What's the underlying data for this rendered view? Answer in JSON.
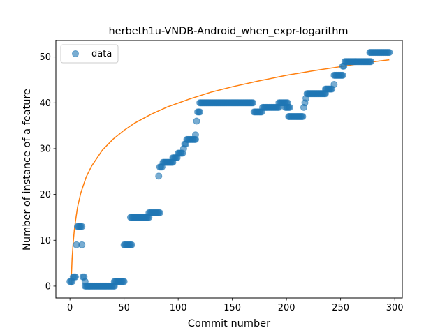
{
  "chart_data": {
    "type": "scatter",
    "title": "herbeth1u-VNDB-Android_when_expr-logarithm",
    "xlabel": "Commit number",
    "ylabel": "Number of instance of a feature",
    "xlim": [
      -13,
      307
    ],
    "ylim": [
      -2.6,
      53.6
    ],
    "xticks": [
      0,
      50,
      100,
      150,
      200,
      250,
      300
    ],
    "yticks": [
      0,
      10,
      20,
      30,
      40,
      50
    ],
    "grid": false,
    "legend": {
      "placement": "top-left",
      "entries": [
        {
          "label": "data"
        }
      ]
    },
    "colors": {
      "scatter": "#1f77b4",
      "fit": "#ff7f0e"
    },
    "series": [
      {
        "name": "data",
        "kind": "scatter",
        "segments": [
          {
            "x_start": 0,
            "x_end": 0,
            "y": 1
          },
          {
            "x_start": 1,
            "x_end": 2,
            "y": 1
          },
          {
            "x_start": 3,
            "x_end": 5,
            "y": 2
          },
          {
            "x_start": 6,
            "x_end": 6,
            "y": 9
          },
          {
            "x_start": 7,
            "x_end": 11,
            "y": 13
          },
          {
            "x_start": 11,
            "x_end": 11,
            "y": 9
          },
          {
            "x_start": 12,
            "x_end": 13,
            "y": 2
          },
          {
            "x_start": 14,
            "x_end": 14,
            "y": 1
          },
          {
            "x_start": 14,
            "x_end": 41,
            "y": 0
          },
          {
            "x_start": 41,
            "x_end": 50,
            "y": 1
          },
          {
            "x_start": 50,
            "x_end": 57,
            "y": 9
          },
          {
            "x_start": 56,
            "x_end": 73,
            "y": 15
          },
          {
            "x_start": 73,
            "x_end": 83,
            "y": 16
          },
          {
            "x_start": 82,
            "x_end": 82,
            "y": 24
          },
          {
            "x_start": 83,
            "x_end": 85,
            "y": 26
          },
          {
            "x_start": 86,
            "x_end": 95,
            "y": 27
          },
          {
            "x_start": 95,
            "x_end": 99,
            "y": 28
          },
          {
            "x_start": 100,
            "x_end": 104,
            "y": 29
          },
          {
            "x_start": 105,
            "x_end": 105,
            "y": 30
          },
          {
            "x_start": 106,
            "x_end": 107,
            "y": 31
          },
          {
            "x_start": 108,
            "x_end": 116,
            "y": 32
          },
          {
            "x_start": 116,
            "x_end": 116,
            "y": 33
          },
          {
            "x_start": 117,
            "x_end": 117,
            "y": 36
          },
          {
            "x_start": 118,
            "x_end": 120,
            "y": 38
          },
          {
            "x_start": 120,
            "x_end": 169,
            "y": 40
          },
          {
            "x_start": 170,
            "x_end": 177,
            "y": 38
          },
          {
            "x_start": 178,
            "x_end": 193,
            "y": 39
          },
          {
            "x_start": 193,
            "x_end": 201,
            "y": 40
          },
          {
            "x_start": 199,
            "x_end": 203,
            "y": 39
          },
          {
            "x_start": 202,
            "x_end": 215,
            "y": 37
          },
          {
            "x_start": 216,
            "x_end": 216,
            "y": 39
          },
          {
            "x_start": 217,
            "x_end": 217,
            "y": 40
          },
          {
            "x_start": 218,
            "x_end": 218,
            "y": 41
          },
          {
            "x_start": 219,
            "x_end": 236,
            "y": 42
          },
          {
            "x_start": 236,
            "x_end": 242,
            "y": 43
          },
          {
            "x_start": 244,
            "x_end": 244,
            "y": 44
          },
          {
            "x_start": 244,
            "x_end": 252,
            "y": 46
          },
          {
            "x_start": 252,
            "x_end": 253,
            "y": 48
          },
          {
            "x_start": 254,
            "x_end": 278,
            "y": 49
          },
          {
            "x_start": 277,
            "x_end": 295,
            "y": 51
          }
        ]
      },
      {
        "name": "fit",
        "kind": "line",
        "x": [
          1,
          2,
          3,
          4,
          5,
          7,
          10,
          15,
          20,
          30,
          40,
          50,
          60,
          75,
          90,
          110,
          130,
          150,
          175,
          200,
          225,
          250,
          275,
          295
        ],
        "y": [
          0.1,
          6.0,
          9.5,
          12.1,
          14.0,
          17.2,
          20.3,
          23.8,
          26.2,
          29.7,
          32.1,
          34.0,
          35.6,
          37.5,
          39.1,
          40.8,
          42.3,
          43.5,
          44.8,
          46.0,
          47.0,
          47.9,
          48.8,
          49.4
        ]
      }
    ]
  }
}
